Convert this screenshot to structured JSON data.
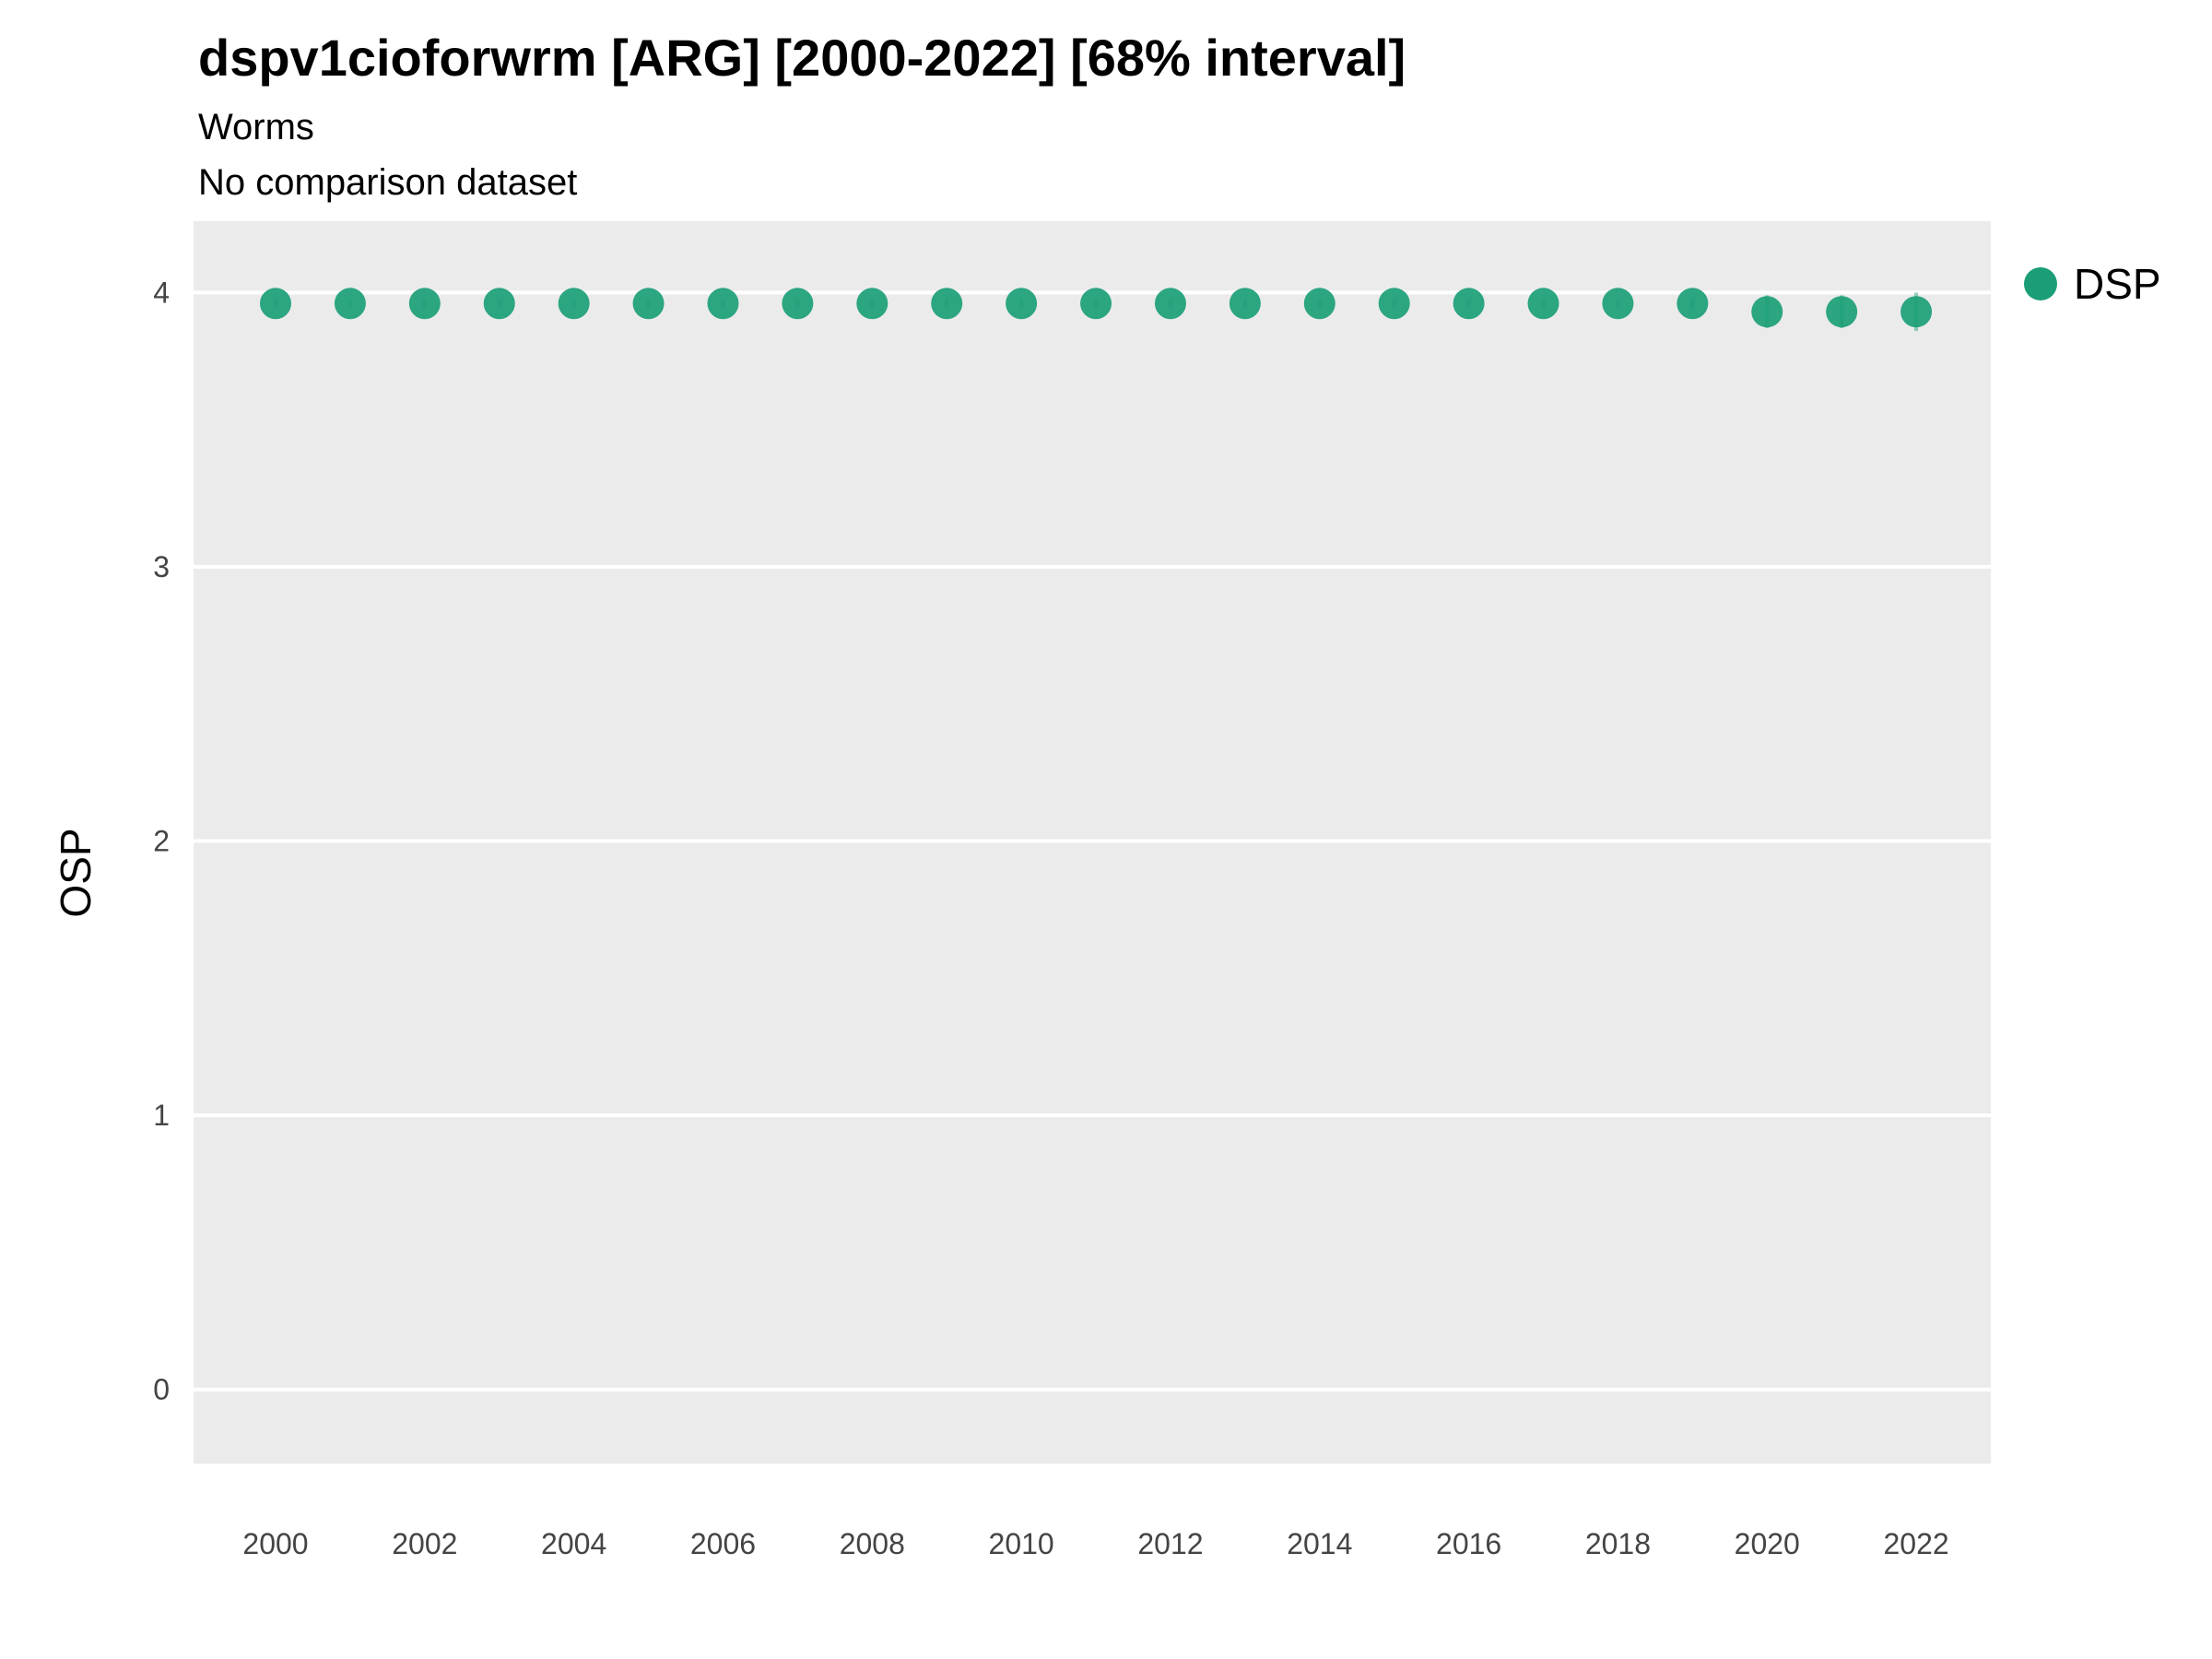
{
  "title": "dspv1cioforwrm [ARG] [2000-2022] [68% interval]",
  "subtitle": "Worms",
  "note": "No comparison dataset",
  "legend": {
    "label": "DSP",
    "color": "#1B9E77"
  },
  "axes": {
    "y_label": "OSP"
  },
  "chart_data": {
    "type": "scatter",
    "title": "dspv1cioforwrm [ARG] [2000-2022] [68% interval]",
    "xlabel": "",
    "ylabel": "OSP",
    "x": [
      2000,
      2001,
      2002,
      2003,
      2004,
      2005,
      2006,
      2007,
      2008,
      2009,
      2010,
      2011,
      2012,
      2013,
      2014,
      2015,
      2016,
      2017,
      2018,
      2019,
      2020,
      2021,
      2022
    ],
    "series": [
      {
        "name": "DSP",
        "values": [
          3.96,
          3.96,
          3.96,
          3.96,
          3.96,
          3.96,
          3.96,
          3.96,
          3.96,
          3.96,
          3.96,
          3.96,
          3.96,
          3.96,
          3.96,
          3.96,
          3.96,
          3.96,
          3.96,
          3.96,
          3.93,
          3.93,
          3.93
        ],
        "err": [
          0.015,
          0.015,
          0.015,
          0.015,
          0.015,
          0.015,
          0.015,
          0.015,
          0.015,
          0.015,
          0.015,
          0.015,
          0.015,
          0.015,
          0.015,
          0.015,
          0.015,
          0.015,
          0.015,
          0.02,
          0.06,
          0.06,
          0.07
        ]
      }
    ],
    "ylim": [
      -0.27,
      4.26
    ],
    "xlim": [
      1998.9,
      2023.0
    ],
    "y_ticks": [
      0,
      1,
      2,
      3,
      4
    ],
    "x_ticks": [
      2000,
      2002,
      2004,
      2006,
      2008,
      2010,
      2012,
      2014,
      2016,
      2018,
      2020,
      2022
    ],
    "grid": "horizontal-major-white",
    "panel_bg": "#EBEBEB",
    "point_color": "#1B9E77",
    "tick_label_color": "#444444",
    "legend_position": "right"
  }
}
